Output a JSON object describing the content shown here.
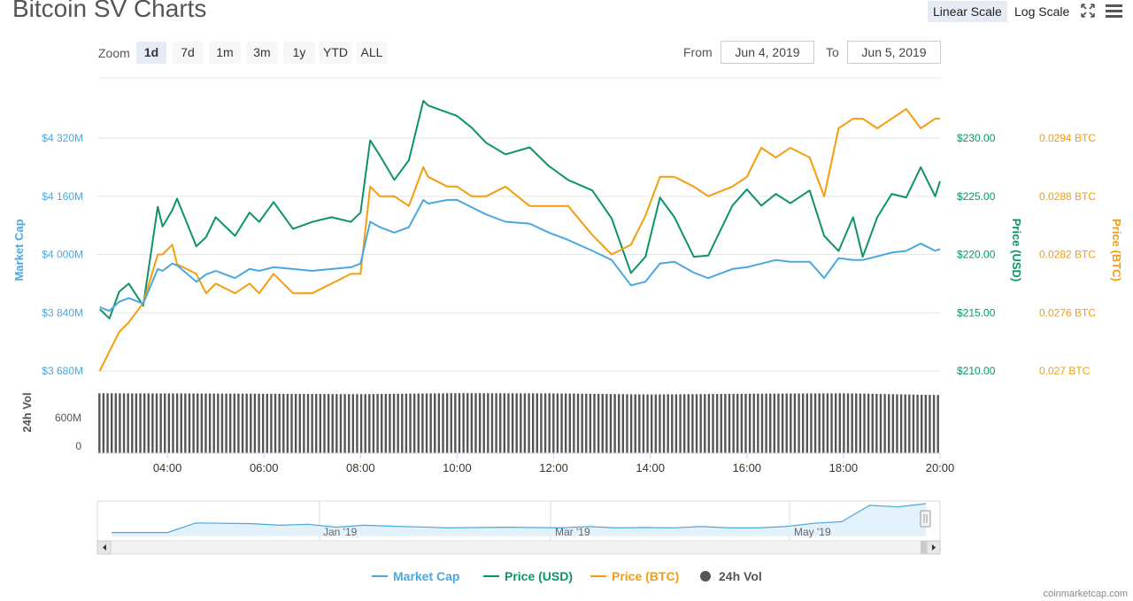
{
  "header": {
    "title": "Bitcoin SV Charts",
    "linear_scale": "Linear Scale",
    "log_scale": "Log Scale"
  },
  "zoom": {
    "label": "Zoom",
    "buttons": [
      "1d",
      "7d",
      "1m",
      "3m",
      "1y",
      "YTD",
      "ALL"
    ],
    "active": "1d"
  },
  "range": {
    "from_label": "From",
    "from_value": "Jun 4, 2019",
    "to_label": "To",
    "to_value": "Jun 5, 2019"
  },
  "colors": {
    "market_cap": "#4aa8e0",
    "price_usd": "#0d9466",
    "price_btc": "#f59d0d",
    "volume": "#555555"
  },
  "chart_data": {
    "type": "line",
    "x_tick_labels": [
      "04:00",
      "06:00",
      "08:00",
      "10:00",
      "12:00",
      "14:00",
      "16:00",
      "18:00",
      "20:00"
    ],
    "x_range_hours": [
      2.55,
      20.0
    ],
    "axes": {
      "market_cap": {
        "label": "Market Cap",
        "ticks": [
          "$3 680M",
          "$3 840M",
          "$4 000M",
          "$4 160M",
          "$4 320M"
        ],
        "range": [
          3680,
          4320
        ],
        "unit": "M USD"
      },
      "price_usd": {
        "label": "Price (USD)",
        "ticks": [
          "$210.00",
          "$215.00",
          "$220.00",
          "$225.00",
          "$230.00"
        ],
        "range": [
          210,
          230
        ]
      },
      "price_btc": {
        "label": "Price (BTC)",
        "ticks": [
          "0.027 BTC",
          "0.0276 BTC",
          "0.0282 BTC",
          "0.0288 BTC",
          "0.0294 BTC"
        ],
        "range": [
          0.027,
          0.0294
        ]
      },
      "volume": {
        "label": "24h Vol",
        "ticks": [
          "0",
          "600M"
        ],
        "range": [
          0,
          1200
        ],
        "unit": "M USD"
      }
    },
    "series": [
      {
        "name": "Price (USD)",
        "axis": "price_usd",
        "x": [
          2.6,
          2.8,
          3.0,
          3.2,
          3.5,
          3.8,
          3.9,
          4.1,
          4.2,
          4.6,
          4.8,
          5.0,
          5.4,
          5.7,
          5.9,
          6.2,
          6.6,
          7.0,
          7.4,
          7.8,
          8.0,
          8.2,
          8.4,
          8.7,
          9.0,
          9.3,
          9.4,
          9.8,
          10.0,
          10.3,
          10.6,
          11.0,
          11.5,
          11.9,
          12.3,
          12.8,
          13.2,
          13.6,
          13.9,
          14.2,
          14.5,
          14.9,
          15.2,
          15.7,
          16.0,
          16.3,
          16.6,
          16.9,
          17.3,
          17.6,
          17.9,
          18.2,
          18.4,
          18.7,
          19.0,
          19.3,
          19.6,
          19.9,
          20.0
        ],
        "y": [
          215.3,
          214.5,
          216.8,
          217.5,
          215.6,
          224.1,
          222.4,
          223.8,
          224.8,
          220.7,
          221.5,
          223.2,
          221.6,
          223.6,
          222.8,
          224.5,
          222.2,
          222.8,
          223.2,
          222.8,
          223.6,
          229.8,
          228.5,
          226.4,
          228.1,
          233.2,
          232.8,
          232.2,
          231.9,
          230.9,
          229.6,
          228.6,
          229.2,
          227.6,
          226.4,
          225.5,
          223.1,
          218.4,
          219.8,
          224.9,
          223.2,
          219.8,
          219.9,
          224.2,
          225.6,
          224.2,
          225.2,
          224.4,
          225.5,
          221.6,
          220.3,
          223.2,
          219.8,
          223.2,
          225.2,
          224.9,
          227.5,
          225.0,
          226.3
        ]
      },
      {
        "name": "Price (BTC)",
        "axis": "price_btc",
        "x": [
          2.6,
          2.8,
          3.0,
          3.2,
          3.5,
          3.8,
          3.9,
          4.1,
          4.2,
          4.6,
          4.8,
          5.0,
          5.4,
          5.7,
          5.9,
          6.2,
          6.6,
          7.0,
          7.4,
          7.8,
          8.0,
          8.2,
          8.4,
          8.7,
          9.0,
          9.3,
          9.4,
          9.8,
          10.0,
          10.3,
          10.6,
          11.0,
          11.5,
          11.9,
          12.3,
          12.8,
          13.2,
          13.6,
          13.9,
          14.2,
          14.5,
          14.9,
          15.2,
          15.7,
          16.0,
          16.3,
          16.6,
          16.9,
          17.3,
          17.6,
          17.9,
          18.2,
          18.4,
          18.7,
          19.0,
          19.3,
          19.6,
          19.9,
          20.0
        ],
        "y": [
          0.027,
          0.0272,
          0.0274,
          0.0275,
          0.0277,
          0.0282,
          0.0282,
          0.0283,
          0.0281,
          0.028,
          0.0278,
          0.0279,
          0.0278,
          0.0279,
          0.0278,
          0.028,
          0.0278,
          0.0278,
          0.0279,
          0.028,
          0.028,
          0.0289,
          0.0288,
          0.0288,
          0.0287,
          0.0291,
          0.029,
          0.0289,
          0.0289,
          0.0288,
          0.0288,
          0.0289,
          0.0287,
          0.0287,
          0.0287,
          0.0284,
          0.0282,
          0.0283,
          0.0286,
          0.029,
          0.029,
          0.0289,
          0.0288,
          0.0289,
          0.029,
          0.0293,
          0.0292,
          0.0293,
          0.0292,
          0.0288,
          0.0295,
          0.0296,
          0.0296,
          0.0295,
          0.0296,
          0.0297,
          0.0295,
          0.0296,
          0.0296
        ]
      },
      {
        "name": "Market Cap",
        "axis": "market_cap",
        "x": [
          2.6,
          2.8,
          3.0,
          3.2,
          3.5,
          3.8,
          3.9,
          4.1,
          4.2,
          4.6,
          4.8,
          5.0,
          5.4,
          5.7,
          5.9,
          6.2,
          6.6,
          7.0,
          7.4,
          7.8,
          8.0,
          8.2,
          8.4,
          8.7,
          9.0,
          9.3,
          9.4,
          9.8,
          10.0,
          10.3,
          10.6,
          11.0,
          11.5,
          11.9,
          12.3,
          12.8,
          13.2,
          13.6,
          13.9,
          14.2,
          14.5,
          14.9,
          15.2,
          15.7,
          16.0,
          16.3,
          16.6,
          16.9,
          17.3,
          17.6,
          17.9,
          18.2,
          18.4,
          18.7,
          19.0,
          19.3,
          19.6,
          19.9,
          20.0
        ],
        "y": [
          3855,
          3845,
          3870,
          3880,
          3865,
          3960,
          3955,
          3975,
          3970,
          3925,
          3945,
          3955,
          3935,
          3960,
          3955,
          3965,
          3960,
          3955,
          3960,
          3965,
          3975,
          4090,
          4075,
          4060,
          4075,
          4150,
          4140,
          4150,
          4150,
          4130,
          4110,
          4090,
          4085,
          4060,
          4040,
          4010,
          3985,
          3915,
          3925,
          3975,
          3980,
          3950,
          3935,
          3960,
          3965,
          3975,
          3985,
          3980,
          3980,
          3935,
          3990,
          3985,
          3985,
          3995,
          4005,
          4010,
          4030,
          4010,
          4015
        ]
      },
      {
        "name": "24h Vol",
        "axis": "volume",
        "x": [
          2.6,
          5.0,
          8.0,
          10.0,
          12.0,
          14.0,
          16.0,
          18.0,
          20.0
        ],
        "y": [
          1020,
          1015,
          1005,
          1022,
          1018,
          1000,
          1012,
          1020,
          990
        ]
      }
    ],
    "legend": [
      "Market Cap",
      "Price (USD)",
      "Price (BTC)",
      "24h Vol"
    ],
    "legend_position": "bottom-center",
    "grid": true
  },
  "navigator": {
    "labels": [
      "Jan '19",
      "Mar '19",
      "May '19"
    ],
    "series_values": [
      0.12,
      0.12,
      0.12,
      0.41,
      0.4,
      0.39,
      0.34,
      0.37,
      0.28,
      0.34,
      0.31,
      0.29,
      0.26,
      0.27,
      0.28,
      0.27,
      0.26,
      0.3,
      0.26,
      0.27,
      0.26,
      0.3,
      0.26,
      0.26,
      0.3,
      0.4,
      0.45,
      0.95,
      0.9,
      1.0
    ]
  },
  "watermark": "coinmarketcap.com"
}
